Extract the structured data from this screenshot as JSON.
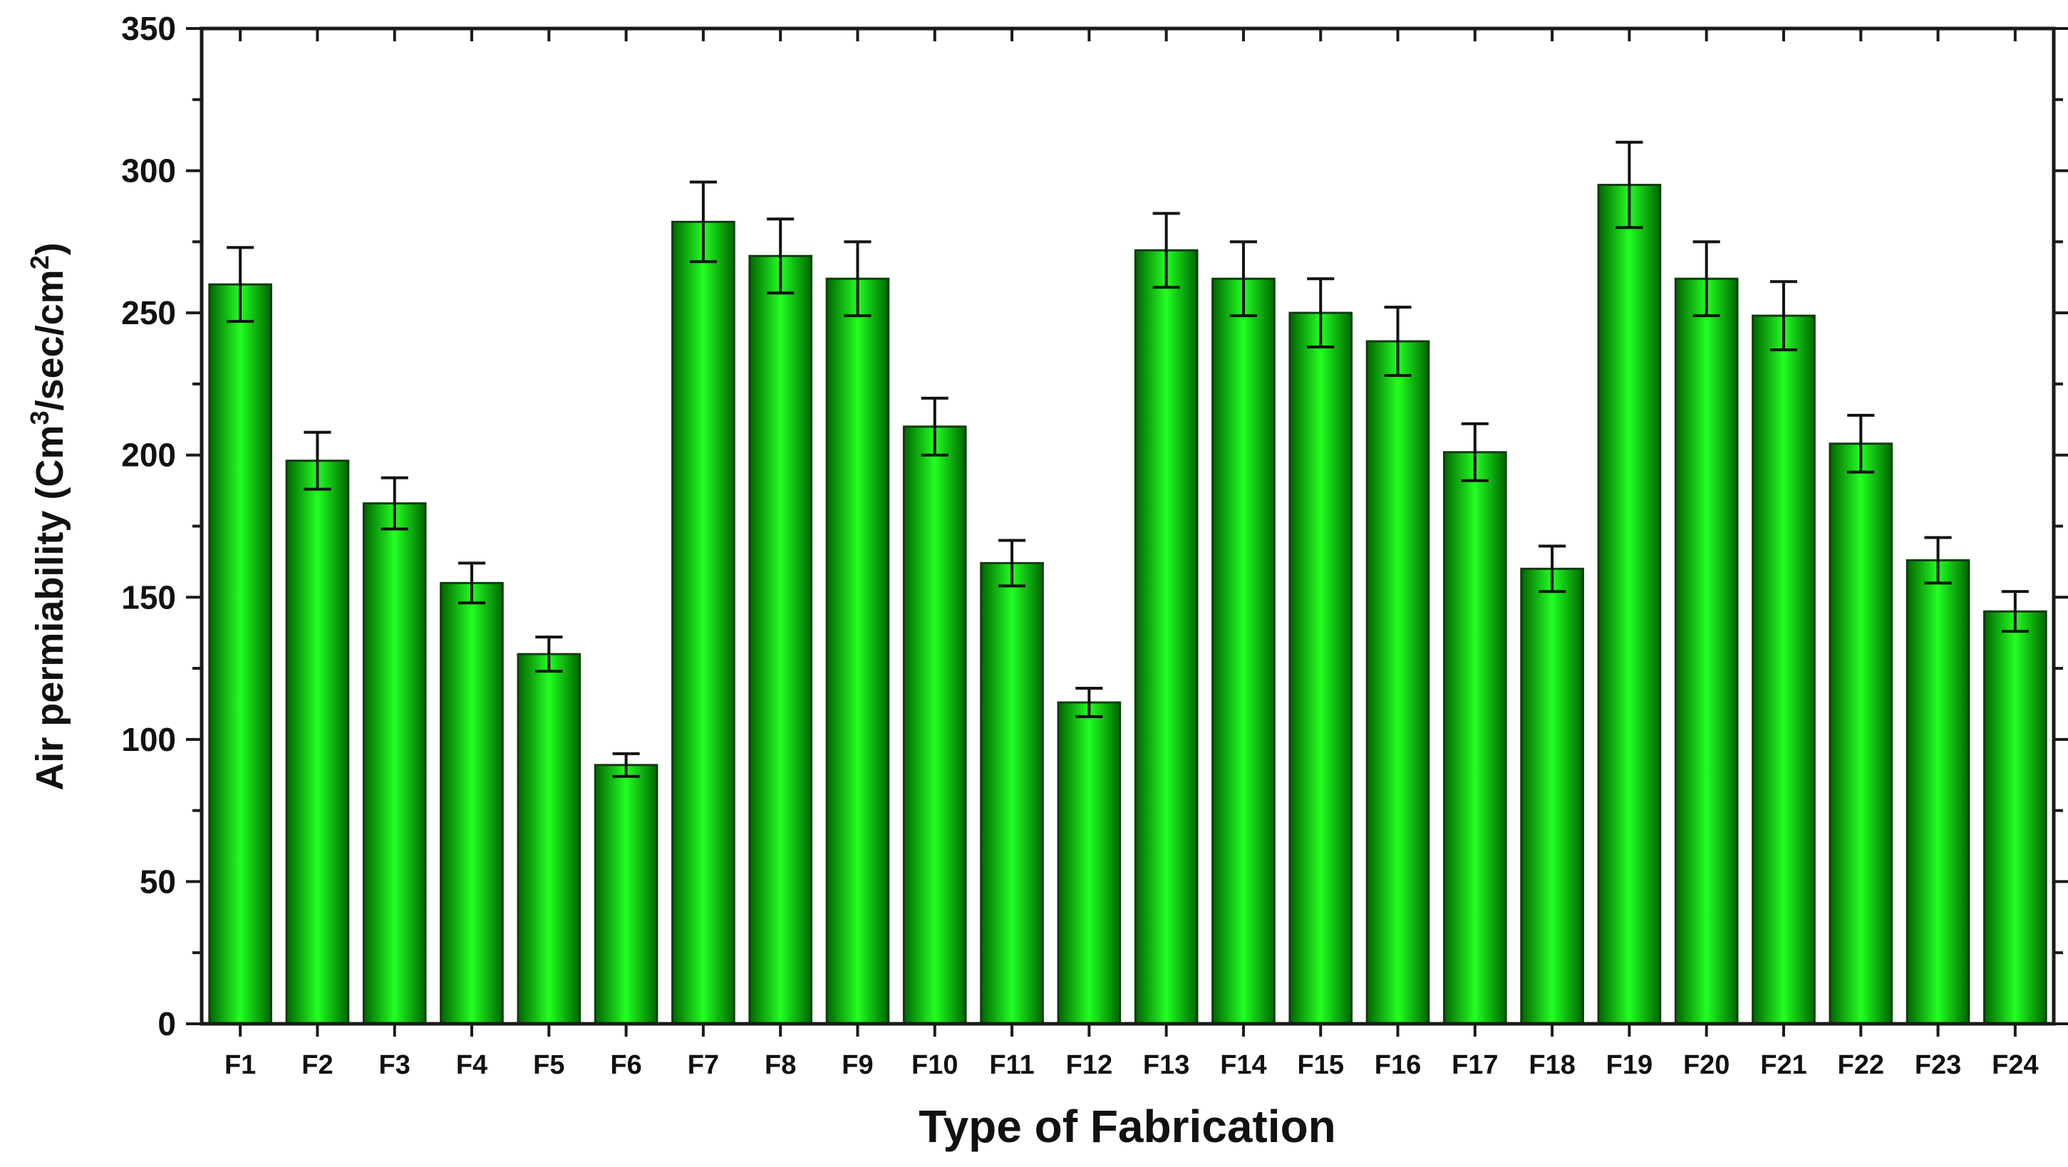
{
  "chart_data": {
    "type": "bar",
    "title": "",
    "xlabel": "Type of Fabrication",
    "ylabel": {
      "prefix": "Air permiability (Cm",
      "sup1": "3",
      "middle": "/sec/cm",
      "sup2": "2",
      "suffix": ")"
    },
    "ylim": [
      0,
      350
    ],
    "yticks": [
      0,
      50,
      100,
      150,
      200,
      250,
      300,
      350
    ],
    "categories": [
      "F1",
      "F2",
      "F3",
      "F4",
      "F5",
      "F6",
      "F7",
      "F8",
      "F9",
      "F10",
      "F11",
      "F12",
      "F13",
      "F14",
      "F15",
      "F16",
      "F17",
      "F18",
      "F19",
      "F20",
      "F21",
      "F22",
      "F23",
      "F24"
    ],
    "values": [
      260,
      198,
      183,
      155,
      130,
      91,
      282,
      270,
      262,
      210,
      162,
      113,
      272,
      262,
      250,
      240,
      201,
      160,
      295,
      262,
      249,
      204,
      163,
      145
    ],
    "errors": [
      13,
      10,
      9,
      7,
      6,
      4,
      14,
      13,
      13,
      10,
      8,
      5,
      13,
      13,
      12,
      12,
      10,
      8,
      15,
      13,
      12,
      10,
      8,
      7
    ],
    "grid": false,
    "legend": "none",
    "colors": {
      "bar_edge": "#0f3d0f",
      "bar_dark": "#006600",
      "bar_light": "#22ff22",
      "axis": "#1a1a1a"
    }
  }
}
